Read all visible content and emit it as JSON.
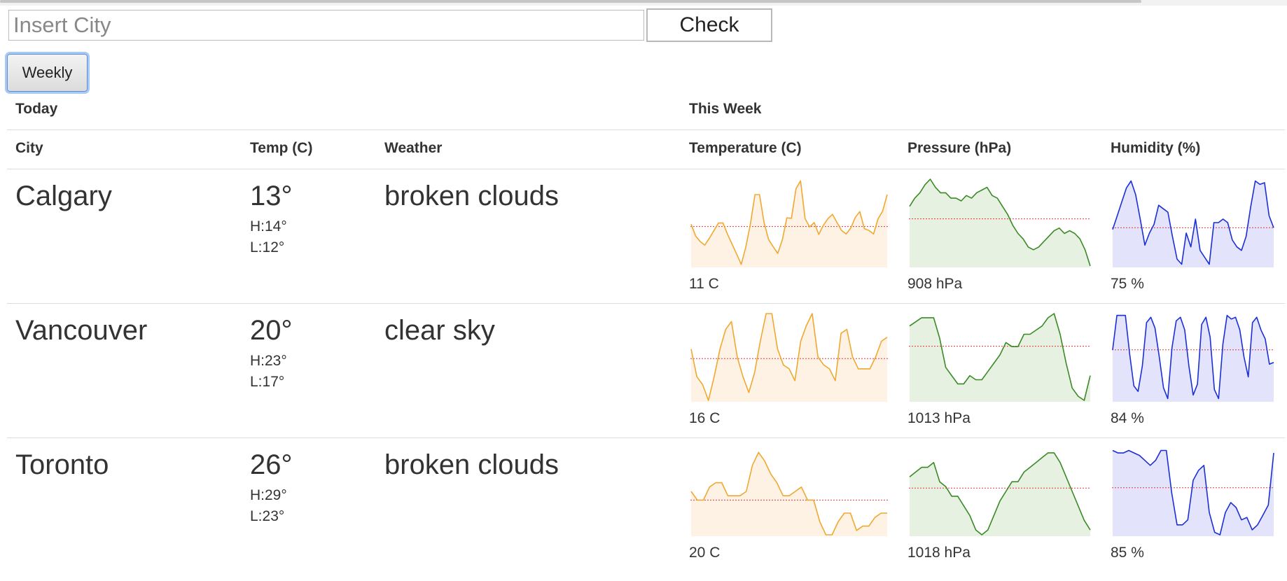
{
  "search": {
    "placeholder": "Insert City",
    "value": ""
  },
  "check_label": "Check",
  "weekly_label": "Weekly",
  "groups": {
    "today": "Today",
    "this_week": "This Week"
  },
  "columns": {
    "city": "City",
    "temp": "Temp (C)",
    "weather": "Weather",
    "temperature": "Temperature (C)",
    "pressure": "Pressure (hPa)",
    "humidity": "Humidity (%)"
  },
  "colors": {
    "temperature_line": "#f0a830",
    "temperature_fill": "#fdf2e3",
    "pressure_line": "#3a8a26",
    "pressure_fill": "#e6f1e1",
    "humidity_line": "#1a2fd8",
    "humidity_fill": "#e3e4fb",
    "mean_line": "#e03a3a"
  },
  "rows": [
    {
      "city": "Calgary",
      "temp": "13°",
      "high": "H:14°",
      "low": "L:12°",
      "weather": "broken clouds",
      "temperature": {
        "label": "11 C",
        "values": [
          10.6,
          7.6,
          6.2,
          5.3,
          7.0,
          9.0,
          10.9,
          10.9,
          8.0,
          5.5,
          3.0,
          0.4,
          4.8,
          10.7,
          18.1,
          18.1,
          11.0,
          6.7,
          4.9,
          3.2,
          6.6,
          12.2,
          12.1,
          19.6,
          21.6,
          12.0,
          9.9,
          11.0,
          8.0,
          10.3,
          12.0,
          13.1,
          11.0,
          9.0,
          8.1,
          9.6,
          12.3,
          13.8,
          9.5,
          9.0,
          8.1,
          12.0,
          13.9,
          18.1
        ],
        "mean": 10.0,
        "min": 0,
        "max": 22
      },
      "pressure": {
        "label": "908 hPa",
        "values": [
          905,
          908,
          910,
          913,
          915,
          912,
          910,
          910,
          908,
          908,
          907,
          909,
          908,
          910,
          911,
          912,
          909,
          908,
          905,
          902,
          898,
          895,
          893,
          890,
          889,
          890,
          892,
          894,
          896,
          897,
          895,
          896,
          895,
          893,
          889,
          883
        ],
        "mean": 900.4,
        "min": 883,
        "max": 915
      },
      "humidity": {
        "label": "75 %",
        "values": [
          72,
          80,
          88,
          96,
          100,
          92,
          78,
          63,
          70,
          75,
          86,
          84,
          82,
          68,
          55,
          52,
          70,
          62,
          78,
          60,
          56,
          52,
          76,
          76,
          78,
          76,
          66,
          62,
          60,
          68,
          85,
          100,
          98,
          99,
          80,
          73
        ],
        "mean": 73,
        "min": 51,
        "max": 101
      }
    },
    {
      "city": "Vancouver",
      "temp": "20°",
      "high": "H:23°",
      "low": "L:17°",
      "weather": "clear sky",
      "temperature": {
        "label": "16 C",
        "values": [
          21,
          14,
          12,
          8,
          14,
          21,
          26,
          28,
          19,
          14,
          10,
          15,
          23,
          30,
          30,
          21,
          17,
          16,
          13,
          23,
          27,
          30,
          19,
          17,
          16,
          13,
          25,
          26,
          19,
          16,
          16,
          16,
          19,
          23,
          24
        ],
        "mean": 18.6,
        "min": 8,
        "max": 30
      },
      "pressure": {
        "label": "1013 hPa",
        "values": [
          1021,
          1022,
          1023,
          1023,
          1023,
          1018,
          1011,
          1009,
          1007,
          1007,
          1009,
          1008,
          1008,
          1010,
          1012,
          1014,
          1017,
          1016,
          1016,
          1019,
          1019,
          1020,
          1021,
          1023,
          1024,
          1019,
          1012,
          1006,
          1004,
          1003,
          1009
        ],
        "mean": 1016.1,
        "min": 1003,
        "max": 1024
      },
      "humidity": {
        "label": "84 %",
        "values": [
          81,
          100,
          100,
          100,
          79,
          61,
          58,
          72,
          96,
          99,
          93,
          77,
          60,
          54,
          82,
          97,
          99,
          92,
          72,
          56,
          62,
          95,
          99,
          88,
          59,
          54,
          84,
          100,
          98,
          99,
          92,
          77,
          66,
          96,
          99,
          92,
          87,
          73,
          74
        ],
        "mean": 81,
        "min": 53,
        "max": 101
      }
    },
    {
      "city": "Toronto",
      "temp": "26°",
      "high": "H:29°",
      "low": "L:23°",
      "weather": "broken clouds",
      "temperature": {
        "label": "20 C",
        "values": [
          26,
          24,
          24,
          27,
          28,
          28,
          25,
          25,
          25,
          26,
          32,
          35,
          33,
          30,
          28,
          25,
          25,
          26,
          27,
          24,
          24,
          19,
          16,
          16,
          19,
          21,
          21,
          17,
          18,
          18,
          20,
          21,
          21
        ],
        "mean": 24.0,
        "min": 16,
        "max": 36
      },
      "pressure": {
        "label": "1018 hPa",
        "values": [
          1020,
          1021,
          1022,
          1022,
          1023,
          1019,
          1018,
          1016,
          1016,
          1014,
          1012,
          1009,
          1008,
          1009,
          1012,
          1015,
          1017,
          1019,
          1019,
          1021,
          1022,
          1023,
          1024,
          1025,
          1025,
          1023,
          1020,
          1017,
          1014,
          1011,
          1009
        ],
        "mean": 1017.7,
        "min": 1008,
        "max": 1026
      },
      "humidity": {
        "label": "85 %",
        "values": [
          100,
          99,
          99,
          100,
          99,
          98,
          96,
          94,
          96,
          100,
          100,
          83,
          70,
          70,
          72,
          88,
          92,
          94,
          75,
          67,
          66,
          75,
          79,
          77,
          72,
          73,
          68,
          70,
          74,
          78,
          99
        ],
        "mean": 85,
        "min": 66,
        "max": 101
      }
    }
  ]
}
